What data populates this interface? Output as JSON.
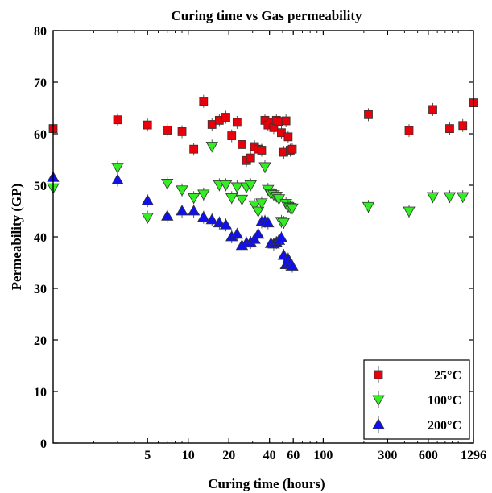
{
  "chart_data": {
    "type": "scatter",
    "title": "Curing time vs Gas permeability",
    "xlabel": "Curing time (hours)",
    "ylabel": "Permeability (GP)",
    "x_scale": "log",
    "xlim": [
      1,
      1296
    ],
    "ylim": [
      0,
      80
    ],
    "x_ticks": [
      5,
      10,
      20,
      40,
      60,
      100,
      300,
      600,
      1296
    ],
    "x_tick_labels": [
      "5",
      "10",
      "20",
      "40",
      "60",
      "100",
      "300",
      "600",
      "1296"
    ],
    "y_ticks": [
      0,
      10,
      20,
      30,
      40,
      50,
      60,
      70,
      80
    ],
    "y_tick_labels": [
      "0",
      "10",
      "20",
      "30",
      "40",
      "50",
      "60",
      "70",
      "80"
    ],
    "grid": false,
    "legend_position": "bottom-right",
    "series": [
      {
        "name": "25°C",
        "marker": "square",
        "color": "#e8000b",
        "points": [
          [
            1,
            61
          ],
          [
            3,
            62.7
          ],
          [
            5,
            61.7
          ],
          [
            7,
            60.7
          ],
          [
            9,
            60.4
          ],
          [
            11,
            57
          ],
          [
            13,
            66.3
          ],
          [
            15,
            61.8
          ],
          [
            17,
            62.6
          ],
          [
            19,
            63.2
          ],
          [
            21,
            59.6
          ],
          [
            23,
            62.2
          ],
          [
            25,
            57.9
          ],
          [
            27,
            54.8
          ],
          [
            29,
            55.3
          ],
          [
            31,
            57.5
          ],
          [
            33,
            57
          ],
          [
            35,
            56.8
          ],
          [
            37,
            62.6
          ],
          [
            39,
            61.7
          ],
          [
            41,
            62.2
          ],
          [
            43,
            61.2
          ],
          [
            45,
            62.6
          ],
          [
            47,
            62.4
          ],
          [
            49,
            60.2
          ],
          [
            51,
            56.4
          ],
          [
            53,
            62.5
          ],
          [
            55,
            59.4
          ],
          [
            57,
            56.8
          ],
          [
            59,
            57
          ],
          [
            216,
            63.7
          ],
          [
            432,
            60.6
          ],
          [
            648,
            64.7
          ],
          [
            864,
            61
          ],
          [
            1080,
            61.6
          ],
          [
            1296,
            66
          ]
        ]
      },
      {
        "name": "100°C",
        "marker": "triangle-down",
        "color": "#33ee22",
        "points": [
          [
            1,
            49.5
          ],
          [
            3,
            53.5
          ],
          [
            5,
            43.8
          ],
          [
            7,
            50.4
          ],
          [
            9,
            49.1
          ],
          [
            11,
            47.6
          ],
          [
            13,
            48.3
          ],
          [
            15,
            57.6
          ],
          [
            17,
            50.1
          ],
          [
            19,
            50.1
          ],
          [
            21,
            47.6
          ],
          [
            23,
            49.7
          ],
          [
            25,
            47.3
          ],
          [
            27,
            49.7
          ],
          [
            29,
            50.1
          ],
          [
            31,
            46.2
          ],
          [
            33,
            45
          ],
          [
            35,
            46.6
          ],
          [
            37,
            53.6
          ],
          [
            39,
            49.2
          ],
          [
            41,
            48.4
          ],
          [
            43,
            48.2
          ],
          [
            45,
            47.9
          ],
          [
            47,
            47.4
          ],
          [
            49,
            43
          ],
          [
            51,
            42.8
          ],
          [
            53,
            46.5
          ],
          [
            55,
            45.9
          ],
          [
            57,
            45.7
          ],
          [
            59,
            45.6
          ],
          [
            216,
            45.9
          ],
          [
            432,
            45
          ],
          [
            648,
            47.8
          ],
          [
            864,
            47.8
          ],
          [
            1080,
            47.8
          ]
        ]
      },
      {
        "name": "200°C",
        "marker": "triangle-up",
        "color": "#1010ee",
        "points": [
          [
            1,
            51.5
          ],
          [
            3,
            51
          ],
          [
            5,
            47
          ],
          [
            7,
            44
          ],
          [
            9,
            45
          ],
          [
            11,
            45
          ],
          [
            13,
            43.8
          ],
          [
            15,
            43.3
          ],
          [
            17,
            42.7
          ],
          [
            19,
            42.3
          ],
          [
            21,
            40
          ],
          [
            23,
            40.5
          ],
          [
            25,
            38.3
          ],
          [
            27,
            38.8
          ],
          [
            29,
            38.9
          ],
          [
            31,
            39.5
          ],
          [
            33,
            40.5
          ],
          [
            35,
            42.9
          ],
          [
            37,
            43
          ],
          [
            39,
            42.7
          ],
          [
            41,
            38.7
          ],
          [
            43,
            38.6
          ],
          [
            45,
            38.9
          ],
          [
            47,
            39.3
          ],
          [
            49,
            39.8
          ],
          [
            51,
            36.4
          ],
          [
            53,
            34.6
          ],
          [
            55,
            35.7
          ],
          [
            57,
            34.9
          ],
          [
            59,
            34.3
          ]
        ]
      }
    ]
  }
}
